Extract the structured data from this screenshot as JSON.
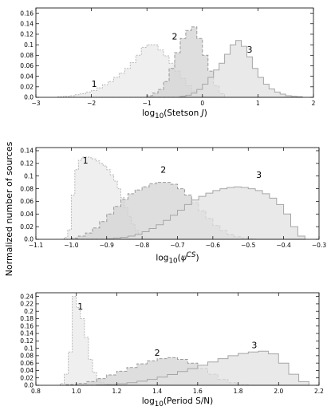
{
  "ylabel": "Normalized number of sources",
  "chart_data": [
    {
      "type": "step-histogram",
      "xlabel_html": "log<sub>10</sub>(Stetson <i>J</i>)",
      "xlabel": "log10(Stetson J)",
      "xlim": [
        -3,
        2
      ],
      "ylim": [
        0,
        0.17
      ],
      "xticks": [
        -3,
        -2,
        -1,
        0,
        1,
        2
      ],
      "yticks": [
        0.0,
        0.02,
        0.04,
        0.06,
        0.08,
        0.1,
        0.12,
        0.14,
        0.16
      ],
      "xtick_labels": [
        "−3",
        "−2",
        "−1",
        "0",
        "1",
        "2"
      ],
      "ytick_labels": [
        "0.0",
        "0.02",
        "0.04",
        "0.06",
        "0.08",
        "0.1",
        "0.12",
        "0.14",
        "0.16"
      ],
      "series": [
        {
          "name": "1",
          "label_at": [
            -1.95,
            0.02
          ],
          "edges": [
            -2.6,
            -2.5,
            -2.4,
            -2.3,
            -2.2,
            -2.1,
            -2.0,
            -1.9,
            -1.8,
            -1.7,
            -1.6,
            -1.5,
            -1.4,
            -1.3,
            -1.2,
            -1.1,
            -1.0,
            -0.9,
            -0.8,
            -0.7,
            -0.6,
            -0.5,
            -0.4,
            -0.3,
            -0.2,
            -0.1,
            0.0,
            0.1,
            0.2
          ],
          "values": [
            0.001,
            0.002,
            0.003,
            0.005,
            0.007,
            0.01,
            0.013,
            0.018,
            0.024,
            0.03,
            0.038,
            0.046,
            0.055,
            0.066,
            0.08,
            0.095,
            0.1,
            0.1,
            0.09,
            0.079,
            0.065,
            0.05,
            0.036,
            0.022,
            0.012,
            0.005,
            0.002,
            0.001
          ]
        },
        {
          "name": "2",
          "label_at": [
            -0.5,
            0.11
          ],
          "edges": [
            -1.0,
            -0.9,
            -0.8,
            -0.7,
            -0.6,
            -0.5,
            -0.4,
            -0.3,
            -0.2,
            -0.1,
            0.0,
            0.1,
            0.2,
            0.3,
            0.4
          ],
          "values": [
            0.003,
            0.008,
            0.015,
            0.03,
            0.055,
            0.085,
            0.112,
            0.127,
            0.134,
            0.112,
            0.08,
            0.05,
            0.022,
            0.007
          ]
        },
        {
          "name": "3",
          "label_at": [
            0.85,
            0.085
          ],
          "edges": [
            -0.4,
            -0.3,
            -0.2,
            -0.1,
            0.0,
            0.1,
            0.2,
            0.3,
            0.4,
            0.5,
            0.6,
            0.7,
            0.8,
            0.9,
            1.0,
            1.1,
            1.2,
            1.3,
            1.4,
            1.5,
            1.6,
            1.7,
            1.8
          ],
          "values": [
            0.002,
            0.004,
            0.008,
            0.015,
            0.025,
            0.038,
            0.052,
            0.065,
            0.082,
            0.1,
            0.108,
            0.097,
            0.077,
            0.055,
            0.038,
            0.025,
            0.016,
            0.01,
            0.006,
            0.003,
            0.002,
            0.001
          ]
        }
      ]
    },
    {
      "type": "step-histogram",
      "xlabel_html": "log<sub>10</sub>(<i>ψ</i><sup><i>CS</i></sup>)",
      "xlabel": "log10(psi^CS)",
      "xlim": [
        -1.1,
        -0.3
      ],
      "ylim": [
        0,
        0.145
      ],
      "xticks": [
        -1.1,
        -1.0,
        -0.9,
        -0.8,
        -0.7,
        -0.6,
        -0.5,
        -0.4,
        -0.3
      ],
      "yticks": [
        0.0,
        0.02,
        0.04,
        0.06,
        0.08,
        0.1,
        0.12,
        0.14
      ],
      "xtick_labels": [
        "−1.1",
        "−1.0",
        "−0.9",
        "−0.8",
        "−0.7",
        "−0.6",
        "−0.5",
        "−0.4",
        "−0.3"
      ],
      "ytick_labels": [
        "0.0",
        "0.02",
        "0.04",
        "0.06",
        "0.08",
        "0.1",
        "0.12",
        "0.14"
      ],
      "series": [
        {
          "name": "1",
          "label_at": [
            -0.96,
            0.12
          ],
          "edges": [
            -1.02,
            -1.01,
            -1.0,
            -0.99,
            -0.98,
            -0.97,
            -0.96,
            -0.95,
            -0.94,
            -0.93,
            -0.92,
            -0.91,
            -0.9,
            -0.89,
            -0.88,
            -0.87,
            -0.86,
            -0.85,
            -0.84,
            -0.83,
            -0.82,
            -0.81,
            -0.8,
            -0.79,
            -0.78,
            -0.77
          ],
          "values": [
            0.003,
            0.015,
            0.07,
            0.11,
            0.125,
            0.13,
            0.13,
            0.129,
            0.127,
            0.124,
            0.12,
            0.116,
            0.11,
            0.102,
            0.092,
            0.08,
            0.066,
            0.05,
            0.036,
            0.024,
            0.014,
            0.008,
            0.004,
            0.002,
            0.001
          ]
        },
        {
          "name": "2",
          "label_at": [
            -0.74,
            0.105
          ],
          "edges": [
            -1.0,
            -0.98,
            -0.96,
            -0.94,
            -0.92,
            -0.9,
            -0.88,
            -0.86,
            -0.84,
            -0.82,
            -0.8,
            -0.78,
            -0.76,
            -0.74,
            -0.72,
            -0.7,
            -0.68,
            -0.66,
            -0.64,
            -0.62,
            -0.6,
            -0.58,
            -0.56,
            -0.54,
            -0.52,
            -0.5,
            -0.48
          ],
          "values": [
            0.002,
            0.005,
            0.01,
            0.018,
            0.028,
            0.04,
            0.052,
            0.063,
            0.072,
            0.078,
            0.083,
            0.088,
            0.09,
            0.09,
            0.087,
            0.08,
            0.07,
            0.058,
            0.045,
            0.033,
            0.022,
            0.014,
            0.008,
            0.004,
            0.002,
            0.001
          ]
        },
        {
          "name": "3",
          "label_at": [
            -0.47,
            0.097
          ],
          "edges": [
            -0.9,
            -0.88,
            -0.86,
            -0.84,
            -0.82,
            -0.8,
            -0.78,
            -0.76,
            -0.74,
            -0.72,
            -0.7,
            -0.68,
            -0.66,
            -0.64,
            -0.62,
            -0.6,
            -0.58,
            -0.56,
            -0.54,
            -0.52,
            -0.5,
            -0.48,
            -0.46,
            -0.44,
            -0.42,
            -0.4,
            -0.38,
            -0.36,
            -0.34
          ],
          "values": [
            0.001,
            0.002,
            0.003,
            0.005,
            0.008,
            0.012,
            0.017,
            0.023,
            0.03,
            0.038,
            0.046,
            0.055,
            0.062,
            0.068,
            0.073,
            0.077,
            0.08,
            0.082,
            0.083,
            0.082,
            0.08,
            0.077,
            0.072,
            0.065,
            0.055,
            0.04,
            0.02,
            0.005
          ]
        }
      ]
    },
    {
      "type": "step-histogram",
      "xlabel_html": "log<sub>10</sub>(Period S/N)",
      "xlabel": "log10(Period S/N)",
      "xlim": [
        0.8,
        2.2
      ],
      "ylim": [
        0,
        0.25
      ],
      "xticks": [
        0.8,
        1.0,
        1.2,
        1.4,
        1.6,
        1.8,
        2.0,
        2.2
      ],
      "yticks": [
        0.0,
        0.02,
        0.04,
        0.06,
        0.08,
        0.1,
        0.12,
        0.14,
        0.16,
        0.18,
        0.2,
        0.22,
        0.24
      ],
      "xtick_labels": [
        "0.8",
        "1.0",
        "1.2",
        "1.4",
        "1.6",
        "1.8",
        "2.0",
        "2.2"
      ],
      "ytick_labels": [
        "0.0",
        "0.02",
        "0.04",
        "0.06",
        "0.08",
        "0.1",
        "0.12",
        "0.14",
        "0.16",
        "0.18",
        "0.2",
        "0.22",
        "0.24"
      ],
      "series": [
        {
          "name": "1",
          "label_at": [
            1.02,
            0.205
          ],
          "edges": [
            0.92,
            0.94,
            0.96,
            0.98,
            1.0,
            1.02,
            1.04,
            1.06,
            1.08,
            1.1,
            1.12,
            1.14,
            1.16,
            1.18,
            1.2
          ],
          "values": [
            0.005,
            0.03,
            0.09,
            0.24,
            0.21,
            0.18,
            0.13,
            0.07,
            0.035,
            0.015,
            0.007,
            0.003,
            0.002,
            0.001
          ]
        },
        {
          "name": "2",
          "label_at": [
            1.4,
            0.08
          ],
          "edges": [
            0.95,
            1.0,
            1.05,
            1.1,
            1.15,
            1.2,
            1.25,
            1.3,
            1.35,
            1.4,
            1.45,
            1.5,
            1.55,
            1.6,
            1.65,
            1.7,
            1.75,
            1.8,
            1.85
          ],
          "values": [
            0.002,
            0.005,
            0.01,
            0.018,
            0.028,
            0.038,
            0.048,
            0.058,
            0.066,
            0.072,
            0.075,
            0.07,
            0.06,
            0.046,
            0.03,
            0.016,
            0.007,
            0.002
          ]
        },
        {
          "name": "3",
          "label_at": [
            1.88,
            0.1
          ],
          "edges": [
            1.1,
            1.15,
            1.2,
            1.25,
            1.3,
            1.35,
            1.4,
            1.45,
            1.5,
            1.55,
            1.6,
            1.65,
            1.7,
            1.75,
            1.8,
            1.85,
            1.9,
            1.95,
            2.0,
            2.05,
            2.1,
            2.15
          ],
          "values": [
            0.001,
            0.002,
            0.004,
            0.007,
            0.011,
            0.016,
            0.022,
            0.029,
            0.037,
            0.045,
            0.054,
            0.063,
            0.072,
            0.08,
            0.086,
            0.09,
            0.092,
            0.085,
            0.06,
            0.03,
            0.01
          ]
        }
      ]
    }
  ]
}
